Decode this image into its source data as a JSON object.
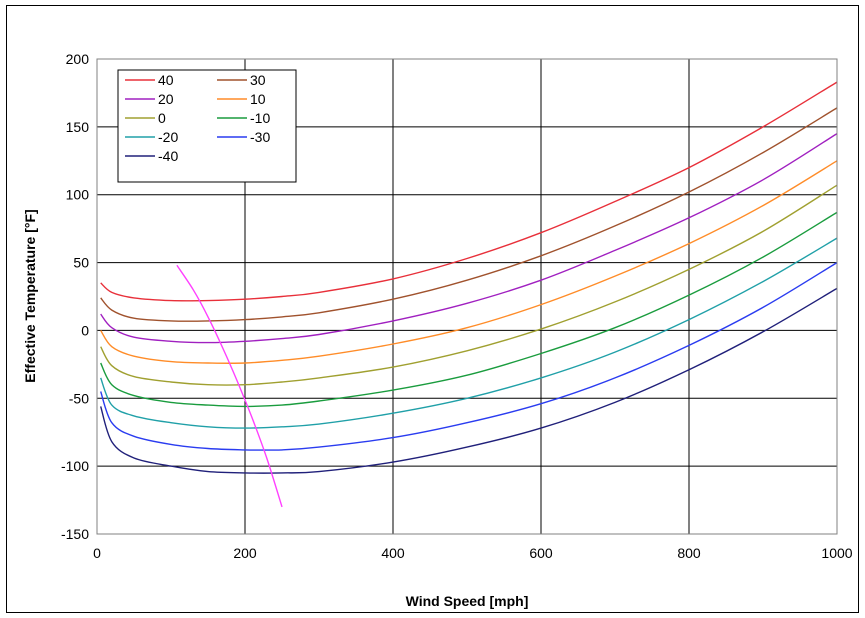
{
  "chart_data": {
    "type": "line",
    "title": "",
    "xlabel": "Wind Speed [mph]",
    "ylabel": "Effective Temperature [°F]",
    "xlim": [
      0,
      1000
    ],
    "ylim": [
      -150,
      200
    ],
    "x_ticks": [
      "0",
      "200",
      "400",
      "600",
      "800",
      "1000"
    ],
    "y_ticks": [
      "200",
      "150",
      "100",
      "50",
      "0",
      "-50",
      "-100",
      "-150"
    ],
    "grid": true,
    "legend_position": "top-left",
    "series": [
      {
        "name": "40",
        "color": "#e8303a",
        "x": [
          5,
          20,
          50,
          100,
          150,
          200,
          250,
          300,
          400,
          500,
          600,
          700,
          800,
          900,
          1000
        ],
        "y": [
          35,
          28,
          24,
          22,
          22,
          23,
          25,
          28,
          38,
          53,
          72,
          95,
          120,
          150,
          183
        ]
      },
      {
        "name": "30",
        "color": "#a0522d",
        "x": [
          5,
          20,
          50,
          100,
          150,
          200,
          250,
          300,
          400,
          500,
          600,
          700,
          800,
          900,
          1000
        ],
        "y": [
          24,
          15,
          9,
          7,
          7,
          8,
          10,
          13,
          23,
          37,
          55,
          77,
          102,
          131,
          164
        ]
      },
      {
        "name": "20",
        "color": "#a020c0",
        "x": [
          5,
          20,
          50,
          100,
          150,
          200,
          250,
          300,
          400,
          500,
          600,
          700,
          800,
          900,
          1000
        ],
        "y": [
          12,
          2,
          -5,
          -8,
          -9,
          -8,
          -6,
          -3,
          7,
          20,
          37,
          59,
          83,
          111,
          145
        ]
      },
      {
        "name": "10",
        "color": "#ff8c28",
        "x": [
          5,
          20,
          50,
          100,
          150,
          200,
          250,
          300,
          400,
          500,
          600,
          700,
          800,
          900,
          1000
        ],
        "y": [
          0,
          -12,
          -19,
          -23,
          -24,
          -24,
          -22,
          -19,
          -10,
          2,
          19,
          40,
          64,
          92,
          125
        ]
      },
      {
        "name": "0",
        "color": "#a0a030",
        "x": [
          5,
          20,
          50,
          100,
          150,
          200,
          250,
          300,
          400,
          500,
          600,
          700,
          800,
          900,
          1000
        ],
        "y": [
          -12,
          -26,
          -34,
          -38,
          -40,
          -40,
          -38,
          -35,
          -27,
          -15,
          1,
          21,
          45,
          73,
          107
        ]
      },
      {
        "name": "-10",
        "color": "#1a9c3e",
        "x": [
          5,
          20,
          50,
          100,
          150,
          200,
          250,
          300,
          400,
          500,
          600,
          700,
          800,
          900,
          1000
        ],
        "y": [
          -24,
          -40,
          -48,
          -53,
          -55,
          -56,
          -55,
          -52,
          -44,
          -33,
          -17,
          2,
          26,
          54,
          87
        ]
      },
      {
        "name": "-20",
        "color": "#20a0a8",
        "x": [
          5,
          20,
          50,
          100,
          150,
          200,
          250,
          300,
          400,
          500,
          600,
          700,
          800,
          900,
          1000
        ],
        "y": [
          -35,
          -55,
          -63,
          -68,
          -71,
          -72,
          -71,
          -69,
          -61,
          -50,
          -35,
          -16,
          8,
          36,
          68
        ]
      },
      {
        "name": "-30",
        "color": "#2a3cf0",
        "x": [
          5,
          20,
          50,
          100,
          150,
          200,
          250,
          300,
          400,
          500,
          600,
          700,
          800,
          900,
          1000
        ],
        "y": [
          -45,
          -68,
          -78,
          -84,
          -87,
          -88,
          -88,
          -86,
          -79,
          -68,
          -54,
          -35,
          -11,
          17,
          50
        ]
      },
      {
        "name": "-40",
        "color": "#20207a",
        "x": [
          5,
          20,
          50,
          100,
          150,
          200,
          250,
          300,
          400,
          500,
          600,
          700,
          800,
          900,
          1000
        ],
        "y": [
          -56,
          -82,
          -94,
          -100,
          -104,
          -105,
          -105,
          -104,
          -97,
          -86,
          -72,
          -53,
          -29,
          -1,
          31
        ]
      }
    ],
    "extra_series": [
      {
        "color": "#ff40ff",
        "x": [
          108,
          130,
          150,
          170,
          190,
          210,
          230,
          250
        ],
        "y": [
          48,
          30,
          10,
          -13,
          -38,
          -65,
          -95,
          -130
        ]
      }
    ]
  }
}
